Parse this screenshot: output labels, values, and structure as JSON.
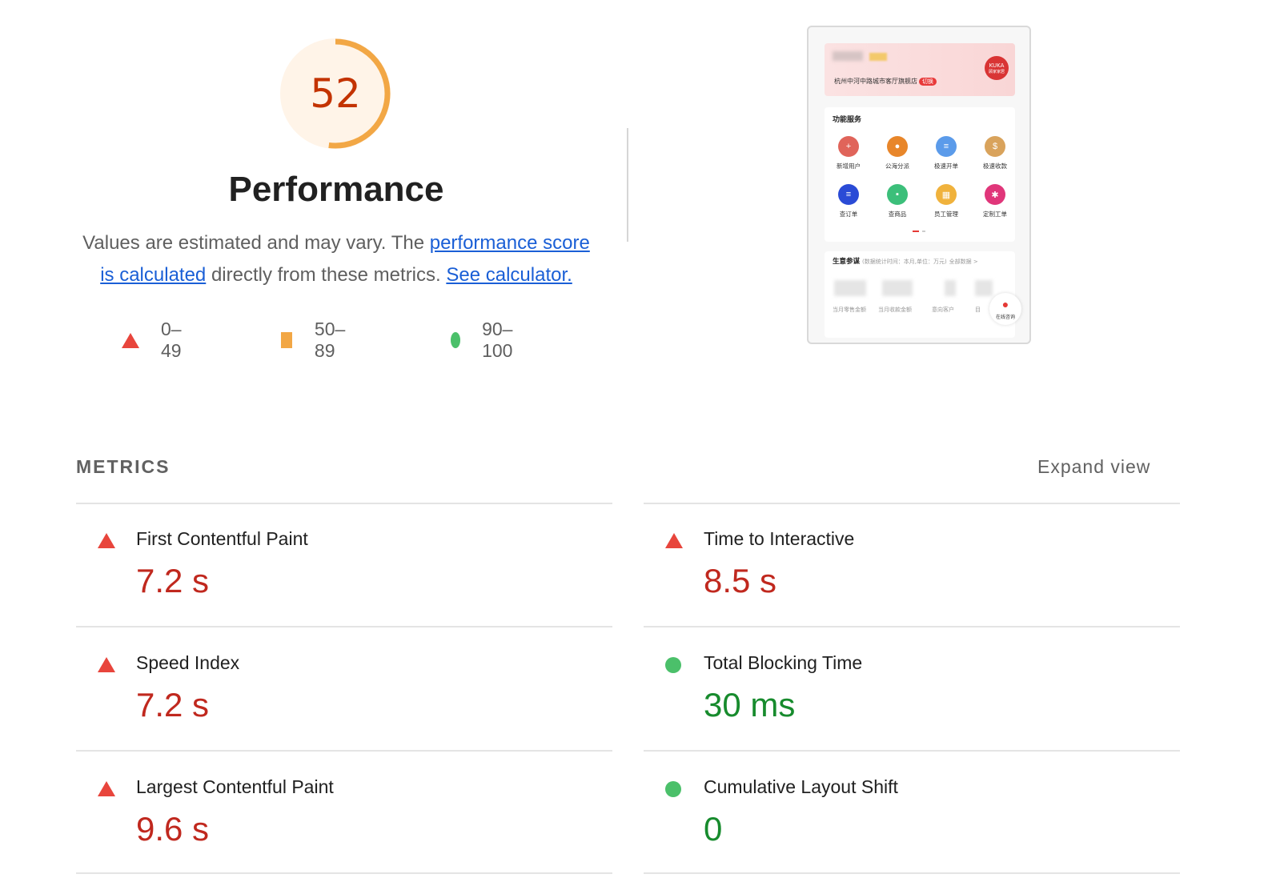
{
  "colors": {
    "fail": "#e8453c",
    "average": "#f2a745",
    "pass": "#4bc06a",
    "fail_text": "#c0281e",
    "pass_text": "#178b2d",
    "score_text": "#c33300",
    "link": "#1a5fd6"
  },
  "gauge": {
    "score": "52",
    "fraction": 0.52
  },
  "category": {
    "title": "Performance"
  },
  "description": {
    "lead": "Values are estimated and may vary. The ",
    "link1": "performance score is calculated",
    "mid": " directly from these metrics. ",
    "link2": "See calculator."
  },
  "legend": [
    {
      "icon": "triangle-icon",
      "label": "0–49"
    },
    {
      "icon": "square-icon",
      "label": "50–89"
    },
    {
      "icon": "circle-icon",
      "label": "90–100"
    }
  ],
  "screenshot": {
    "store_name": "杭州中河中路城市客厅旗舰店",
    "switch_label": "切换",
    "logo_text": "KUKA",
    "logo_sub": "顾家家居",
    "services_title": "功能服务",
    "services": [
      {
        "label": "新增用户",
        "color": "#e0645a",
        "icon": "user-add-icon"
      },
      {
        "label": "公海分派",
        "color": "#e8862a",
        "icon": "user-icon"
      },
      {
        "label": "极速开单",
        "color": "#5b9bea",
        "icon": "document-icon"
      },
      {
        "label": "极速收款",
        "color": "#d9a35c",
        "icon": "money-bag-icon"
      },
      {
        "label": "查订单",
        "color": "#2a4bd6",
        "icon": "order-icon"
      },
      {
        "label": "查商品",
        "color": "#3cbf7a",
        "icon": "goods-icon"
      },
      {
        "label": "员工管理",
        "color": "#f0b23c",
        "icon": "staff-icon"
      },
      {
        "label": "定制工单",
        "color": "#e0367a",
        "icon": "gear-icon"
      }
    ],
    "biz_title": "生意参谋",
    "biz_subtitle": "(数据统计时间：本月,单位：万元)",
    "biz_all": "全部数据 >",
    "biz_labels": [
      "当月零售金额",
      "当月收款金额",
      "意向客户",
      "目"
    ],
    "consult_label": "在线咨询"
  },
  "metrics": {
    "header": "METRICS",
    "expand": "Expand view",
    "items": [
      {
        "label": "First Contentful Paint",
        "value": "7.2 s",
        "status": "fail"
      },
      {
        "label": "Time to Interactive",
        "value": "8.5 s",
        "status": "fail"
      },
      {
        "label": "Speed Index",
        "value": "7.2 s",
        "status": "fail"
      },
      {
        "label": "Total Blocking Time",
        "value": "30 ms",
        "status": "pass"
      },
      {
        "label": "Largest Contentful Paint",
        "value": "9.6 s",
        "status": "fail"
      },
      {
        "label": "Cumulative Layout Shift",
        "value": "0",
        "status": "pass"
      }
    ]
  }
}
